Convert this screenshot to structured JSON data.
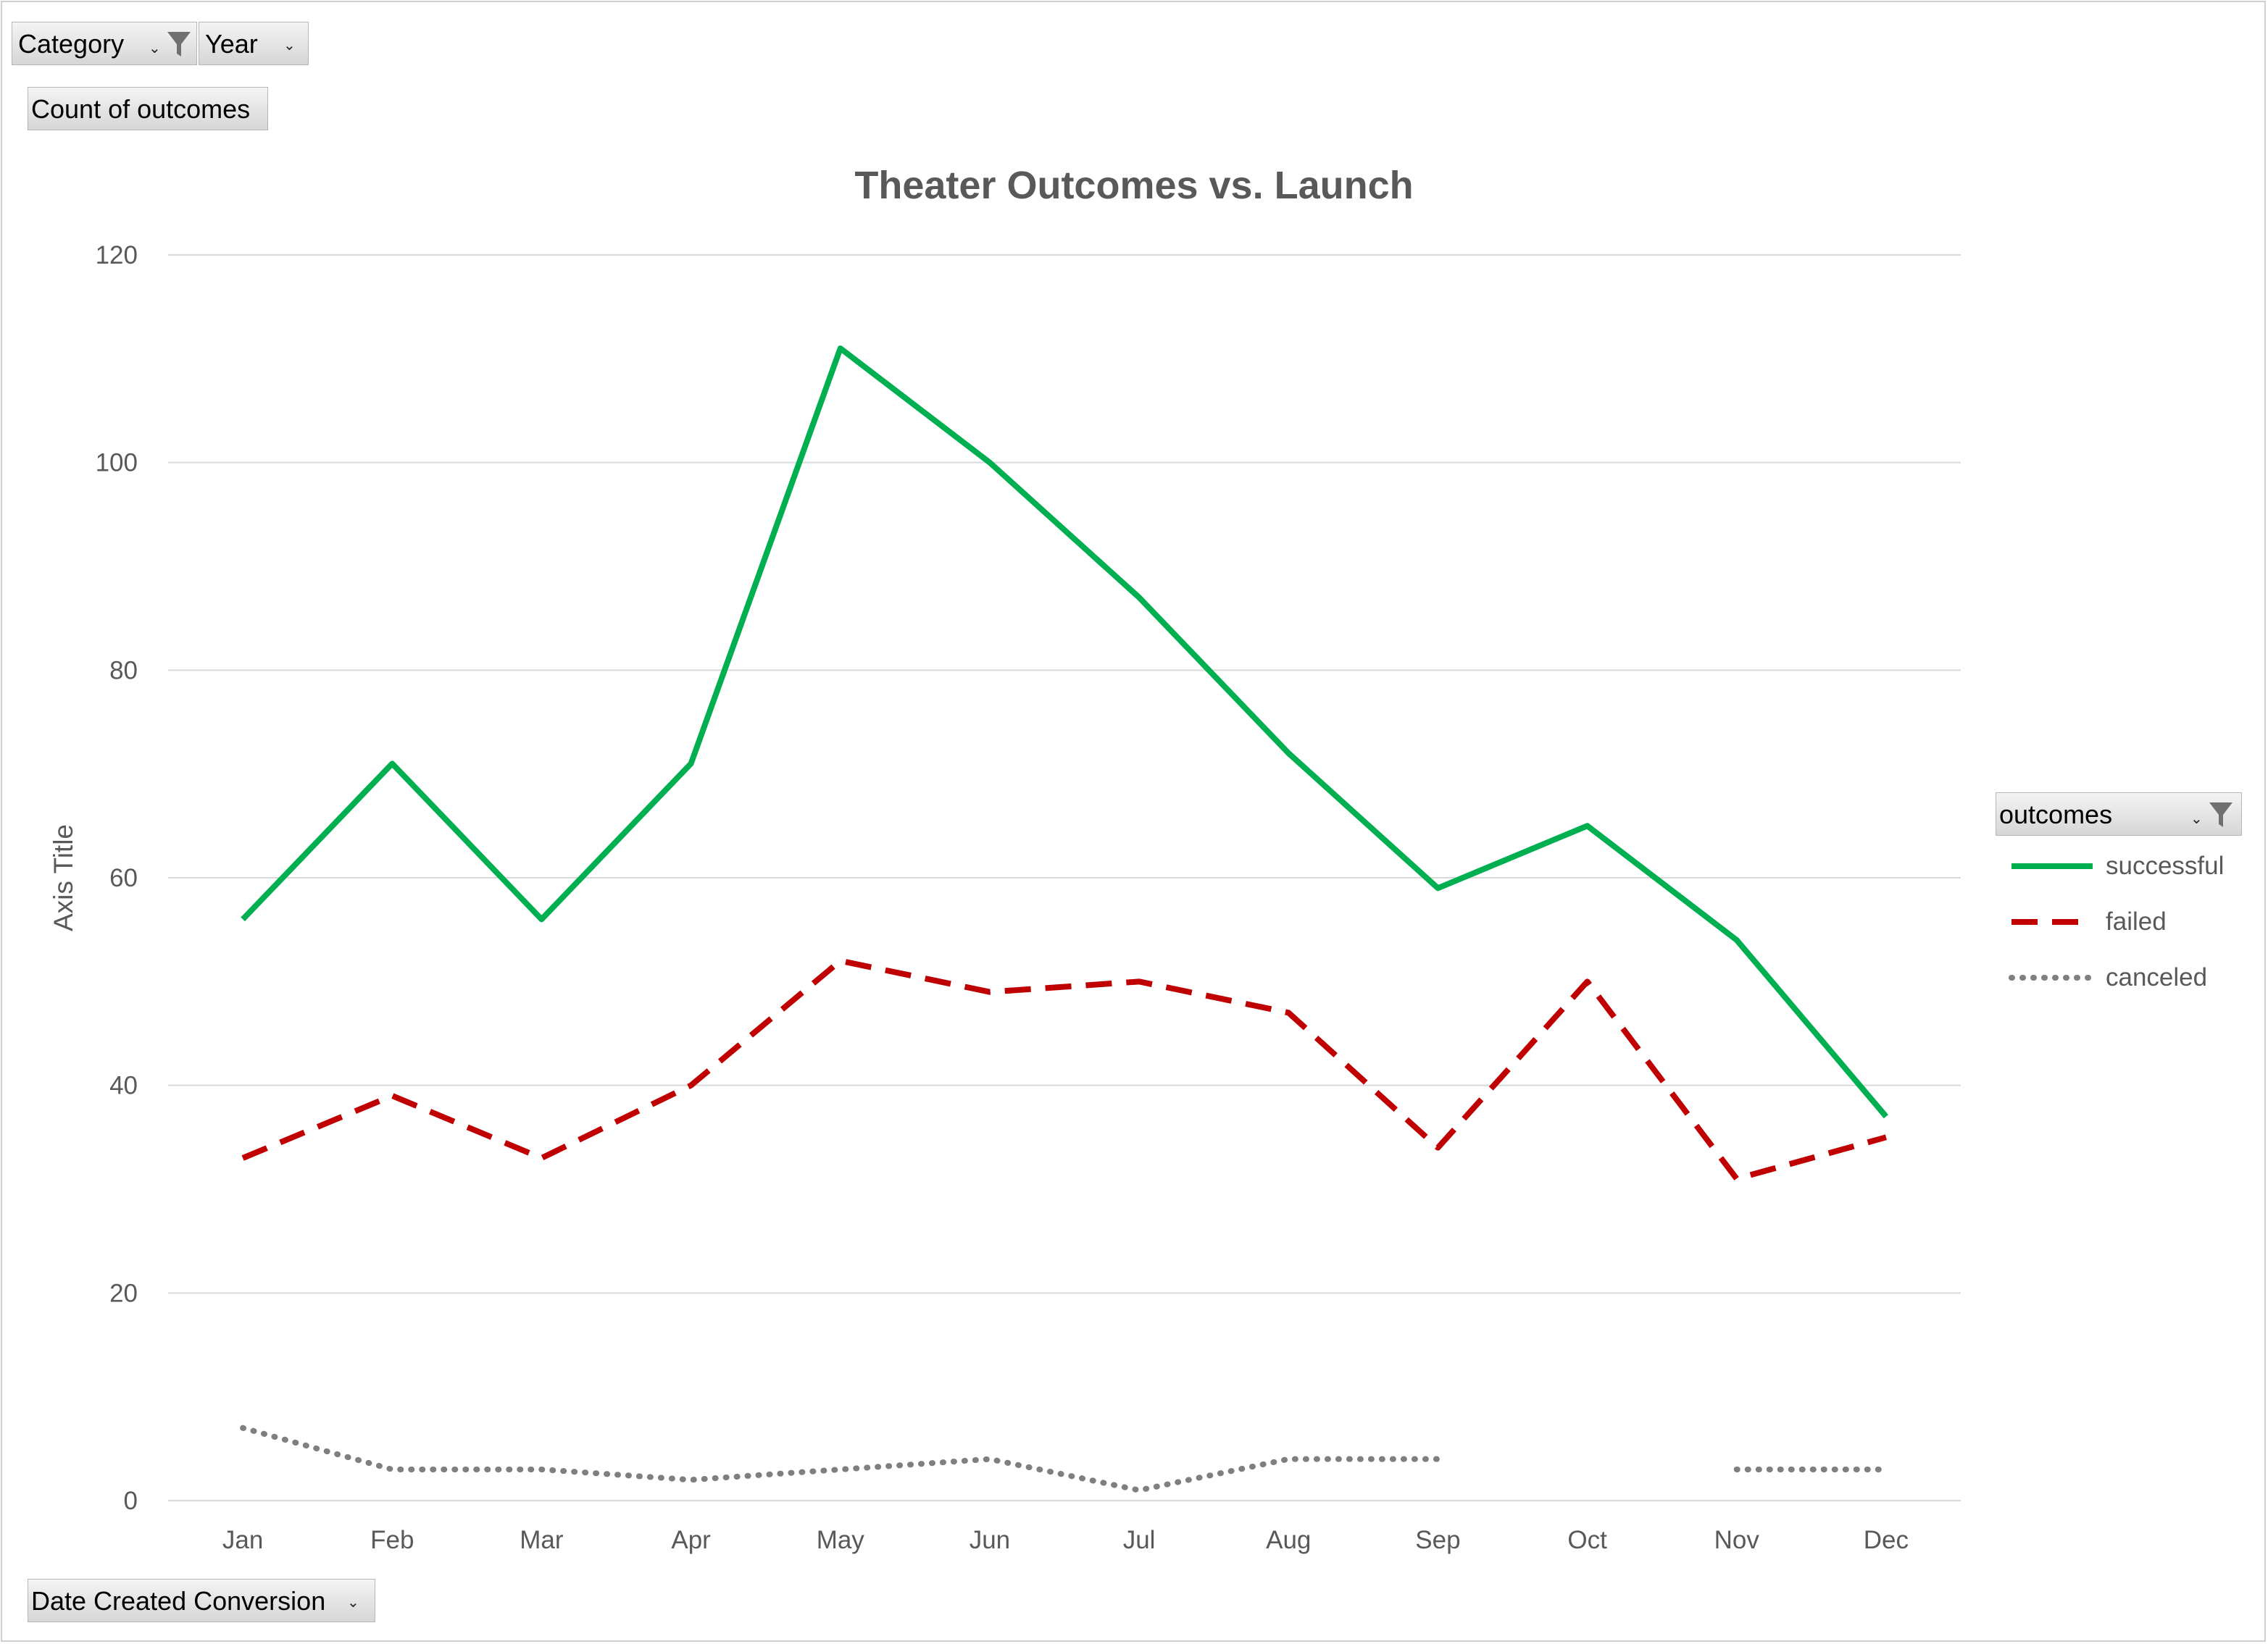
{
  "filters": {
    "category_label": "Category",
    "year_label": "Year",
    "values_label": "Count of outcomes",
    "axis_field_label": "Date Created Conversion",
    "legend_field_label": "outcomes"
  },
  "icons": {
    "filter": "funnel-icon",
    "dropdown": "dropdown-arrow-icon"
  },
  "chart_data": {
    "type": "line",
    "title": "Theater Outcomes vs. Launch",
    "xlabel": "",
    "ylabel": "Axis Title",
    "ylim": [
      0,
      120
    ],
    "yticks": [
      0,
      20,
      40,
      60,
      80,
      100,
      120
    ],
    "grid": true,
    "legend_position": "right",
    "categories": [
      "Jan",
      "Feb",
      "Mar",
      "Apr",
      "May",
      "Jun",
      "Jul",
      "Aug",
      "Sep",
      "Oct",
      "Nov",
      "Dec"
    ],
    "series": [
      {
        "name": "successful",
        "color": "#00b050",
        "style": "solid",
        "values": [
          56,
          71,
          56,
          71,
          111,
          100,
          87,
          72,
          59,
          65,
          54,
          37
        ]
      },
      {
        "name": "failed",
        "color": "#c00000",
        "style": "dashed",
        "values": [
          33,
          39,
          33,
          40,
          52,
          49,
          50,
          47,
          34,
          50,
          31,
          35
        ]
      },
      {
        "name": "canceled",
        "color": "#7f7f7f",
        "style": "dotted",
        "values": [
          7,
          3,
          3,
          2,
          3,
          4,
          1,
          4,
          4,
          null,
          3,
          3
        ]
      }
    ]
  }
}
